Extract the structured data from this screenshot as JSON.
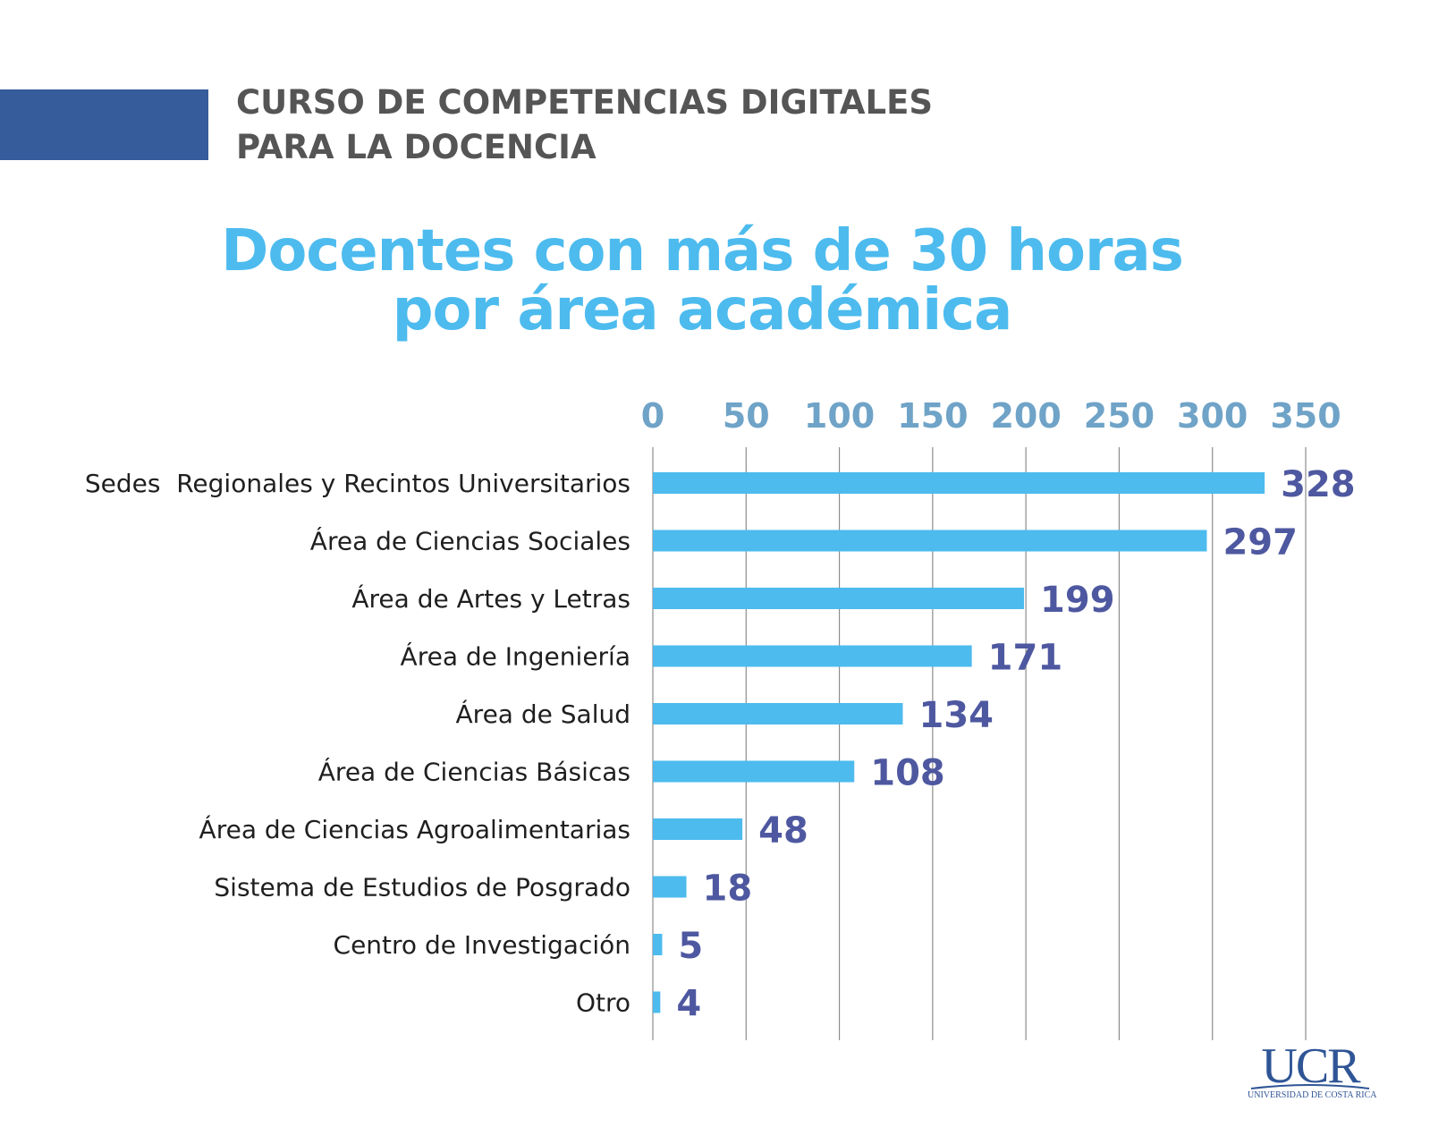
{
  "header": {
    "course_line1": "CURSO DE COMPETENCIAS DIGITALES",
    "course_line2": "PARA LA DOCENCIA"
  },
  "colors": {
    "accent_bar": "#365C9B",
    "course_text": "#555555",
    "title": "#4DBBEE",
    "bar": "#4DBBEE",
    "value_label": "#4E58A0",
    "tick_label": "#6FA3C7",
    "category_label": "#1F1F1F",
    "grid": "#8C8C8C",
    "logo": "#2F5596"
  },
  "chart_data": {
    "type": "bar",
    "orientation": "horizontal",
    "title_line1": "Docentes con más de 30 horas",
    "title_line2": "por área académica",
    "xlabel": "",
    "ylabel": "",
    "xlim": [
      0,
      350
    ],
    "x_ticks": [
      0,
      50,
      100,
      150,
      200,
      250,
      300,
      350
    ],
    "x_axis_position": "top",
    "grid": "vertical",
    "categories": [
      "Sedes  Regionales y Recintos Universitarios",
      "Área de Ciencias Sociales",
      "Área de Artes y Letras",
      "Área de Ingeniería",
      "Área de Salud",
      "Área de Ciencias Básicas",
      "Área de Ciencias Agroalimentarias",
      "Sistema de Estudios de Posgrado",
      "Centro de Investigación",
      "Otro"
    ],
    "values": [
      328,
      297,
      199,
      171,
      134,
      108,
      48,
      18,
      5,
      4
    ]
  },
  "logo": {
    "letters": "UCR",
    "caption": "UNIVERSIDAD DE COSTA RICA"
  }
}
